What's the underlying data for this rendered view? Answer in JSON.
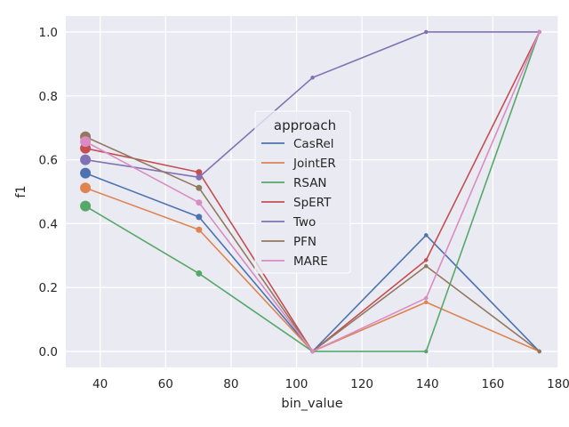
{
  "chart_data": {
    "type": "line",
    "xlabel": "bin_value",
    "ylabel": "f1",
    "xlim": [
      29.5,
      180
    ],
    "ylim": [
      -0.05,
      1.05
    ],
    "xticks": [
      40,
      60,
      80,
      100,
      120,
      140,
      160,
      180
    ],
    "yticks": [
      0.0,
      0.2,
      0.4,
      0.6,
      0.8,
      1.0
    ],
    "grid": true,
    "legend": {
      "title": "approach",
      "placement": "center"
    },
    "x": [
      35.5,
      70.2,
      104.9,
      139.6,
      174.2
    ],
    "marker_sizes": [
      4,
      2,
      1,
      1,
      1
    ],
    "series": [
      {
        "name": "CasRel",
        "color": "#4c72b0",
        "values": [
          0.558,
          0.421,
          0.0,
          0.364,
          0.0
        ]
      },
      {
        "name": "JointER",
        "color": "#dd8452",
        "values": [
          0.512,
          0.381,
          0.0,
          0.154,
          0.0
        ]
      },
      {
        "name": "RSAN",
        "color": "#55a868",
        "values": [
          0.455,
          0.244,
          0.0,
          0.0,
          1.0
        ]
      },
      {
        "name": "SpERT",
        "color": "#c44e52",
        "values": [
          0.636,
          0.561,
          0.0,
          0.286,
          1.0
        ]
      },
      {
        "name": "Two",
        "color": "#8172b3",
        "values": [
          0.6,
          0.545,
          0.857,
          1.0,
          1.0
        ]
      },
      {
        "name": "PFN",
        "color": "#937860",
        "values": [
          0.672,
          0.512,
          0.0,
          0.267,
          0.0
        ]
      },
      {
        "name": "MARE",
        "color": "#da8bc3",
        "values": [
          0.657,
          0.466,
          0.0,
          0.167,
          1.0
        ]
      }
    ]
  }
}
